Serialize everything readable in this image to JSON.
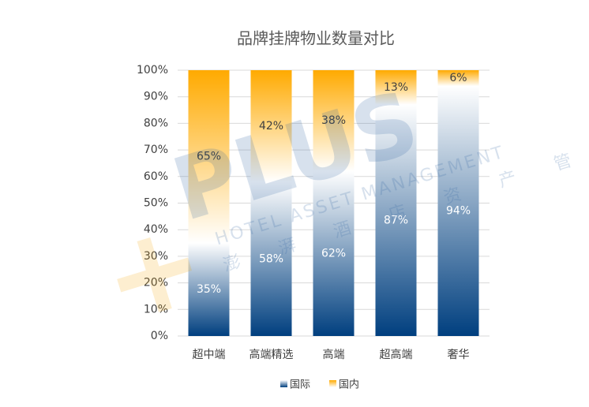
{
  "chart_data": {
    "type": "stacked_bar",
    "title": "品牌挂牌物业数量对比",
    "categories": [
      "超中端",
      "高端精选",
      "高端",
      "超高端",
      "奢华"
    ],
    "series": [
      {
        "name": "国际",
        "color": "#003f7f",
        "values": [
          35,
          58,
          62,
          87,
          94
        ],
        "value_labels": [
          "35%",
          "58%",
          "62%",
          "87%",
          "94%"
        ]
      },
      {
        "name": "国内",
        "color": "#ffaa00",
        "values": [
          65,
          42,
          38,
          13,
          6
        ],
        "value_labels": [
          "65%",
          "42%",
          "38%",
          "13%",
          "6%"
        ]
      }
    ],
    "ylim": [
      0,
      100
    ],
    "yticks": [
      {
        "value": 0,
        "label": "0%"
      },
      {
        "value": 10,
        "label": "10%"
      },
      {
        "value": 20,
        "label": "20%"
      },
      {
        "value": 30,
        "label": "30%"
      },
      {
        "value": 40,
        "label": "40%"
      },
      {
        "value": 50,
        "label": "50%"
      },
      {
        "value": 60,
        "label": "60%"
      },
      {
        "value": 70,
        "label": "70%"
      },
      {
        "value": 80,
        "label": "80%"
      },
      {
        "value": 90,
        "label": "90%"
      },
      {
        "value": 100,
        "label": "100%"
      }
    ],
    "grid": true,
    "legend": "bottom",
    "watermark": {
      "logo": "PLUS",
      "line1": "HOTEL ASSET MANAGEMENT",
      "line2": "澎 湃 酒 店 资 产 管 理"
    }
  }
}
